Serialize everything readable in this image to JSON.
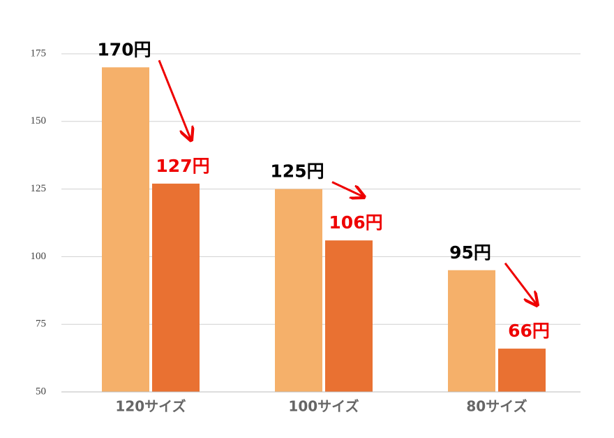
{
  "chart_data": {
    "type": "bar",
    "categories": [
      "120サイズ",
      "100サイズ",
      "80サイズ"
    ],
    "series": [
      {
        "color": "#f5b06a",
        "label_color": "#000000",
        "values": [
          170,
          125,
          95
        ],
        "value_labels": [
          "170円",
          "125円",
          "95円"
        ]
      },
      {
        "color": "#e97132",
        "label_color": "#ee0000",
        "values": [
          127,
          106,
          66
        ],
        "value_labels": [
          "127円",
          "106円",
          "66円"
        ]
      }
    ],
    "ylim": [
      50,
      175
    ],
    "yticks": [
      50,
      75,
      100,
      125,
      150,
      175
    ],
    "grid": true
  }
}
